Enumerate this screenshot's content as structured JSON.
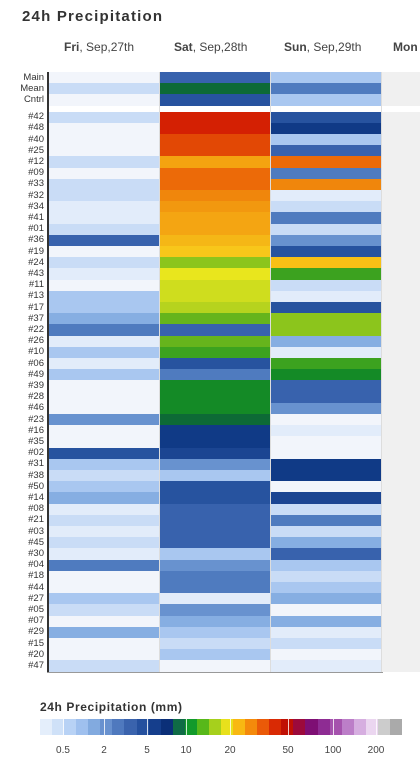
{
  "title": "24h Precipitation",
  "days": [
    {
      "weekday": "Fri",
      "date": ", Sep,27th"
    },
    {
      "weekday": "Sat",
      "date": ", Sep,28th"
    },
    {
      "weekday": "Sun",
      "date": ", Sep,29th"
    },
    {
      "weekday": "Mon",
      "date": ""
    }
  ],
  "rows": [
    {
      "label": "Main",
      "mm": [
        0.1,
        5,
        1,
        0
      ]
    },
    {
      "label": "Mean",
      "mm": [
        0.7,
        10,
        4,
        0
      ]
    },
    {
      "label": "Cntrl",
      "mm": [
        0.1,
        6,
        1,
        0
      ]
    },
    {
      "label": "#42",
      "mm": [
        0.7,
        50,
        6,
        0
      ]
    },
    {
      "label": "#48",
      "mm": [
        0.1,
        50,
        8,
        0
      ]
    },
    {
      "label": "#40",
      "mm": [
        0.1,
        40,
        1,
        0
      ]
    },
    {
      "label": "#25",
      "mm": [
        0.1,
        40,
        5,
        0
      ]
    },
    {
      "label": "#12",
      "mm": [
        0.7,
        23,
        35,
        0
      ]
    },
    {
      "label": "#09",
      "mm": [
        0.1,
        35,
        4,
        0
      ]
    },
    {
      "label": "#33",
      "mm": [
        0.7,
        35,
        30,
        0
      ]
    },
    {
      "label": "#32",
      "mm": [
        0.7,
        30,
        0.3,
        0
      ]
    },
    {
      "label": "#34",
      "mm": [
        0.3,
        28,
        0.5,
        0
      ]
    },
    {
      "label": "#41",
      "mm": [
        0.3,
        27,
        4,
        0
      ]
    },
    {
      "label": "#01",
      "mm": [
        0.7,
        27,
        0.5,
        0
      ]
    },
    {
      "label": "#36",
      "mm": [
        5,
        26,
        3,
        0
      ]
    },
    {
      "label": "#19",
      "mm": [
        0.1,
        25,
        6,
        0
      ]
    },
    {
      "label": "#24",
      "mm": [
        0.5,
        14,
        20,
        0
      ]
    },
    {
      "label": "#43",
      "mm": [
        0.3,
        18,
        12,
        0
      ]
    },
    {
      "label": "#11",
      "mm": [
        0.1,
        16,
        0.7,
        0
      ]
    },
    {
      "label": "#13",
      "mm": [
        1,
        16,
        0.3,
        0
      ]
    },
    {
      "label": "#17",
      "mm": [
        1,
        15,
        6,
        0
      ]
    },
    {
      "label": "#37",
      "mm": [
        2,
        13,
        14,
        0
      ]
    },
    {
      "label": "#22",
      "mm": [
        4,
        5,
        14,
        0
      ]
    },
    {
      "label": "#26",
      "mm": [
        0.3,
        13,
        2,
        0
      ]
    },
    {
      "label": "#10",
      "mm": [
        1,
        12,
        0.3,
        0
      ]
    },
    {
      "label": "#06",
      "mm": [
        0.3,
        6,
        12,
        0
      ]
    },
    {
      "label": "#49",
      "mm": [
        1,
        4,
        11,
        0
      ]
    },
    {
      "label": "#39",
      "mm": [
        0.1,
        11,
        5,
        0
      ]
    },
    {
      "label": "#28",
      "mm": [
        0.1,
        11,
        5,
        0
      ]
    },
    {
      "label": "#46",
      "mm": [
        0.1,
        11,
        3,
        0
      ]
    },
    {
      "label": "#23",
      "mm": [
        3,
        10,
        0.1,
        0
      ]
    },
    {
      "label": "#16",
      "mm": [
        0.1,
        8,
        0.3,
        0
      ]
    },
    {
      "label": "#35",
      "mm": [
        0.1,
        8,
        0.1,
        0
      ]
    },
    {
      "label": "#02",
      "mm": [
        6,
        7,
        0.1,
        0
      ]
    },
    {
      "label": "#31",
      "mm": [
        1,
        3,
        8,
        0
      ]
    },
    {
      "label": "#38",
      "mm": [
        0.5,
        1.5,
        8,
        0
      ]
    },
    {
      "label": "#50",
      "mm": [
        1,
        6,
        0.1,
        0
      ]
    },
    {
      "label": "#14",
      "mm": [
        2,
        6,
        7,
        0
      ]
    },
    {
      "label": "#08",
      "mm": [
        0.3,
        5,
        0.5,
        0
      ]
    },
    {
      "label": "#21",
      "mm": [
        0.5,
        5,
        4,
        0
      ]
    },
    {
      "label": "#03",
      "mm": [
        0.3,
        5,
        0.7,
        0
      ]
    },
    {
      "label": "#45",
      "mm": [
        0.7,
        5,
        2,
        0
      ]
    },
    {
      "label": "#30",
      "mm": [
        0.3,
        1,
        5,
        0
      ]
    },
    {
      "label": "#04",
      "mm": [
        4,
        3,
        1,
        0
      ]
    },
    {
      "label": "#18",
      "mm": [
        0.1,
        4,
        0.5,
        0
      ]
    },
    {
      "label": "#44",
      "mm": [
        0.1,
        4,
        1,
        0
      ]
    },
    {
      "label": "#27",
      "mm": [
        1,
        0.3,
        2,
        0
      ]
    },
    {
      "label": "#05",
      "mm": [
        0.5,
        3,
        0.1,
        0
      ]
    },
    {
      "label": "#07",
      "mm": [
        0.1,
        2,
        2,
        0
      ]
    },
    {
      "label": "#29",
      "mm": [
        2,
        1,
        0.3,
        0
      ]
    },
    {
      "label": "#15",
      "mm": [
        0.1,
        0.5,
        0.5,
        0
      ]
    },
    {
      "label": "#20",
      "mm": [
        0.1,
        1,
        0.1,
        0
      ]
    },
    {
      "label": "#47",
      "mm": [
        0.7,
        0.1,
        0.3,
        0
      ]
    }
  ],
  "legend": {
    "title": "24h Precipitation (mm)",
    "tick_labels": [
      "0.5",
      "2",
      "5",
      "10",
      "20",
      "50",
      "100",
      "200"
    ],
    "tick_values": [
      0.5,
      2,
      5,
      10,
      20,
      50,
      100,
      200
    ],
    "colors": [
      "#e4eefb",
      "#cfe1f8",
      "#b8d2f5",
      "#9fc0ee",
      "#82aadf",
      "#6891cf",
      "#4f79be",
      "#3a63ad",
      "#25509e",
      "#153e8c",
      "#0b2f78",
      "#0f6b46",
      "#129a2b",
      "#58b81a",
      "#a6d01c",
      "#e8e01c",
      "#f8b812",
      "#f48a0b",
      "#ea5a08",
      "#d92a04",
      "#c01004",
      "#9c0a3c",
      "#7e0f74",
      "#8e2c93",
      "#a552ad",
      "#bc7ec8",
      "#d6aee0",
      "#ebd6f0",
      "#cccccc",
      "#aaaaaa"
    ]
  }
}
